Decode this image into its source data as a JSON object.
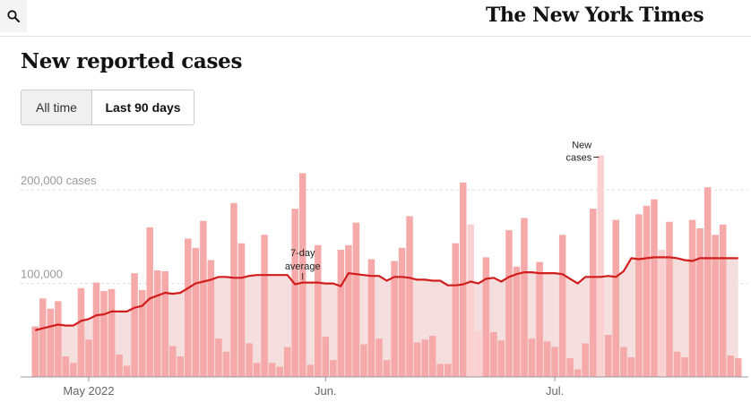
{
  "header": {
    "search_icon": "search-icon",
    "logo_text": "The New York Times"
  },
  "page": {
    "title": "New reported cases"
  },
  "toggle": {
    "all_time_label": "All time",
    "last_90_label": "Last 90 days",
    "selected": "Last 90 days"
  },
  "colors": {
    "bar": "#f6a9a9",
    "bar_light": "#fbd0d0",
    "average_line": "#d21d1d",
    "average_fill": "#f5dede",
    "gridline": "#dcdcdc"
  },
  "chart_data": {
    "type": "bar",
    "title": "New reported cases",
    "ylim": [
      0,
      250000
    ],
    "yticks": [
      {
        "value": 100000,
        "label": "100,000"
      },
      {
        "value": 200000,
        "label": "200,000 cases"
      }
    ],
    "xticks": [
      {
        "index": 7,
        "label": "May 2022"
      },
      {
        "index": 38,
        "label": "Jun."
      },
      {
        "index": 68,
        "label": "Jul."
      }
    ],
    "annotations": {
      "average": [
        "7-day",
        "average"
      ],
      "new_cases": [
        "New",
        "cases"
      ]
    },
    "series": [
      {
        "name": "New cases",
        "values": [
          54000,
          84000,
          73000,
          81000,
          22000,
          15000,
          95000,
          40000,
          101000,
          92000,
          94000,
          24000,
          12000,
          111000,
          93000,
          160000,
          114000,
          113000,
          33000,
          22000,
          148000,
          138000,
          167000,
          125000,
          41000,
          27000,
          186000,
          143000,
          36000,
          15000,
          152000,
          15000,
          11000,
          32000,
          180000,
          218000,
          13000,
          141000,
          43000,
          18000,
          136000,
          141000,
          165000,
          35000,
          126000,
          41000,
          18000,
          124000,
          138000,
          172000,
          37000,
          40000,
          44000,
          14000,
          14000,
          143000,
          208000,
          163000,
          49000,
          128000,
          48000,
          39000,
          157000,
          118000,
          170000,
          41000,
          123000,
          38000,
          32000,
          152000,
          20000,
          8000,
          36000,
          180000,
          237000,
          45000,
          168000,
          32000,
          21000,
          174000,
          183000,
          190000,
          136000,
          166000,
          27000,
          21000,
          168000,
          159000,
          203000,
          152000,
          163000,
          23000,
          20000
        ],
        "light": [
          false,
          false,
          false,
          false,
          false,
          false,
          false,
          false,
          false,
          false,
          false,
          false,
          false,
          false,
          false,
          false,
          false,
          false,
          false,
          false,
          false,
          false,
          false,
          false,
          false,
          false,
          false,
          false,
          false,
          false,
          false,
          false,
          false,
          false,
          false,
          false,
          false,
          false,
          false,
          false,
          false,
          false,
          false,
          false,
          false,
          false,
          false,
          false,
          false,
          false,
          false,
          false,
          false,
          false,
          false,
          false,
          false,
          true,
          true,
          false,
          false,
          false,
          false,
          false,
          false,
          false,
          false,
          false,
          false,
          false,
          false,
          false,
          false,
          false,
          true,
          false,
          false,
          false,
          false,
          false,
          false,
          false,
          true,
          false,
          false,
          false,
          false,
          false,
          false,
          false,
          false,
          false,
          false
        ]
      },
      {
        "name": "7-day average",
        "values": [
          50000,
          52000,
          54000,
          56000,
          55000,
          55000,
          60000,
          62000,
          66000,
          67000,
          70000,
          70000,
          70000,
          74000,
          76000,
          84000,
          87000,
          90000,
          89000,
          90000,
          95000,
          100000,
          102000,
          104000,
          107000,
          107000,
          106000,
          106000,
          108000,
          109000,
          109000,
          109000,
          109000,
          109000,
          99000,
          101000,
          101000,
          101000,
          100000,
          100000,
          97000,
          111000,
          110000,
          109000,
          108000,
          108000,
          103000,
          107000,
          107000,
          106000,
          104000,
          104000,
          103000,
          103000,
          98000,
          98000,
          99000,
          102000,
          100000,
          105000,
          106000,
          102000,
          107000,
          110000,
          112000,
          112000,
          111000,
          111000,
          111000,
          110000,
          105000,
          100000,
          107000,
          107000,
          107000,
          108000,
          107000,
          113000,
          127000,
          126000,
          127000,
          128000,
          128000,
          128000,
          127000,
          125000,
          124000,
          127000,
          127000,
          127000,
          127000,
          127000,
          127000
        ]
      }
    ]
  }
}
